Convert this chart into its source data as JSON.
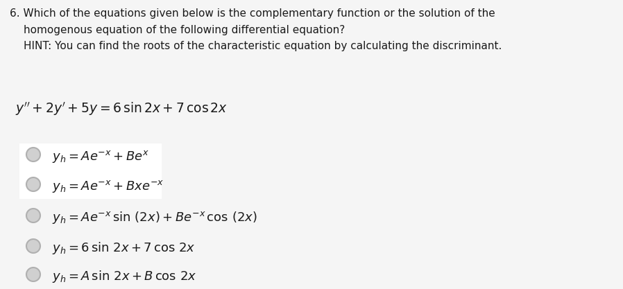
{
  "background_color": "#f5f5f5",
  "box_color": "#ffffff",
  "text_color": "#1a1a1a",
  "title_line1": "6. Which of the equations given below is the complementary function or the solution of the",
  "title_line2": "homogenous equation of the following differential equation?",
  "title_line3": "HINT: You can find the roots of the characteristic equation by calculating the discriminant.",
  "circle_face_color": "#d0d0d0",
  "circle_edge_color": "#b0b0b0",
  "figsize": [
    8.98,
    4.17
  ],
  "dpi": 100,
  "header_fontsize": 11.0,
  "eq_fontsize": 13.5,
  "option_fontsize": 13.0
}
